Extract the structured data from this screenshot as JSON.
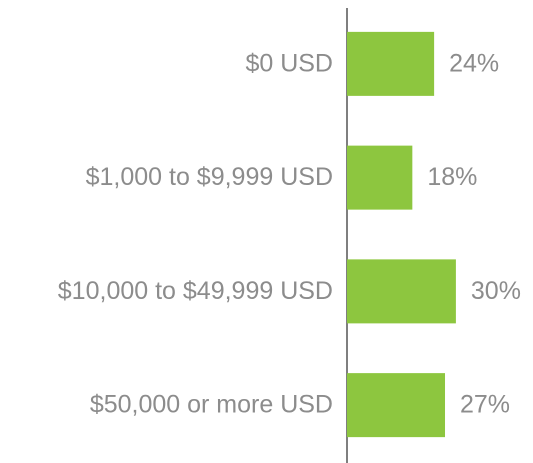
{
  "chart_data": {
    "type": "bar",
    "orientation": "horizontal",
    "categories": [
      "$0 USD",
      "$1,000 to $9,999 USD",
      "$10,000 to $49,999 USD",
      "$50,000 or more USD"
    ],
    "values": [
      24,
      18,
      30,
      27
    ],
    "value_labels": [
      "24%",
      "18%",
      "30%",
      "27%"
    ],
    "color": "#8dc63f"
  }
}
